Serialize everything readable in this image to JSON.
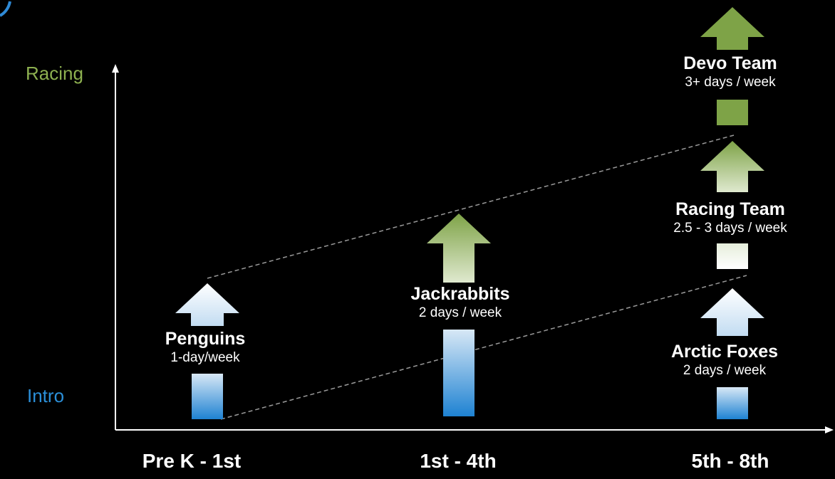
{
  "axes": {
    "y_top_label": "Racing",
    "y_bottom_label": "Intro",
    "x_labels": [
      "Pre K - 1st",
      "1st - 4th",
      "5th - 8th"
    ]
  },
  "colors": {
    "racing_label": "#8db050",
    "intro_label": "#2b8fd8",
    "green": "#7ea347",
    "blue": "#1e82d2",
    "light": "#eef4fb"
  },
  "groups": [
    {
      "name": "Penguins",
      "frequency": "1-day/week"
    },
    {
      "name": "Jackrabbits",
      "frequency": "2 days / week"
    },
    {
      "name": "Arctic Foxes",
      "frequency": "2 days / week"
    },
    {
      "name": "Racing Team",
      "frequency": "2.5 - 3 days / week"
    },
    {
      "name": "Devo Team",
      "frequency": "3+ days / week"
    }
  ]
}
